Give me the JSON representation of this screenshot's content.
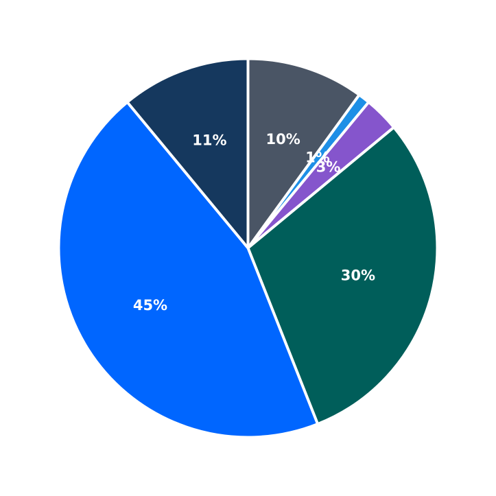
{
  "chart_data": {
    "type": "pie",
    "title": "",
    "start_angle_deg": 90,
    "direction": "clockwise",
    "slices": [
      {
        "label": "10%",
        "value": 10,
        "color": "#4a5565"
      },
      {
        "label": "1%",
        "value": 1,
        "color": "#1e8fe6"
      },
      {
        "label": "3%",
        "value": 3,
        "color": "#8555cc"
      },
      {
        "label": "30%",
        "value": 30,
        "color": "#005e5a"
      },
      {
        "label": "45%",
        "value": 45,
        "color": "#0066ff"
      },
      {
        "label": "11%",
        "value": 11,
        "color": "#15385e"
      }
    ]
  }
}
